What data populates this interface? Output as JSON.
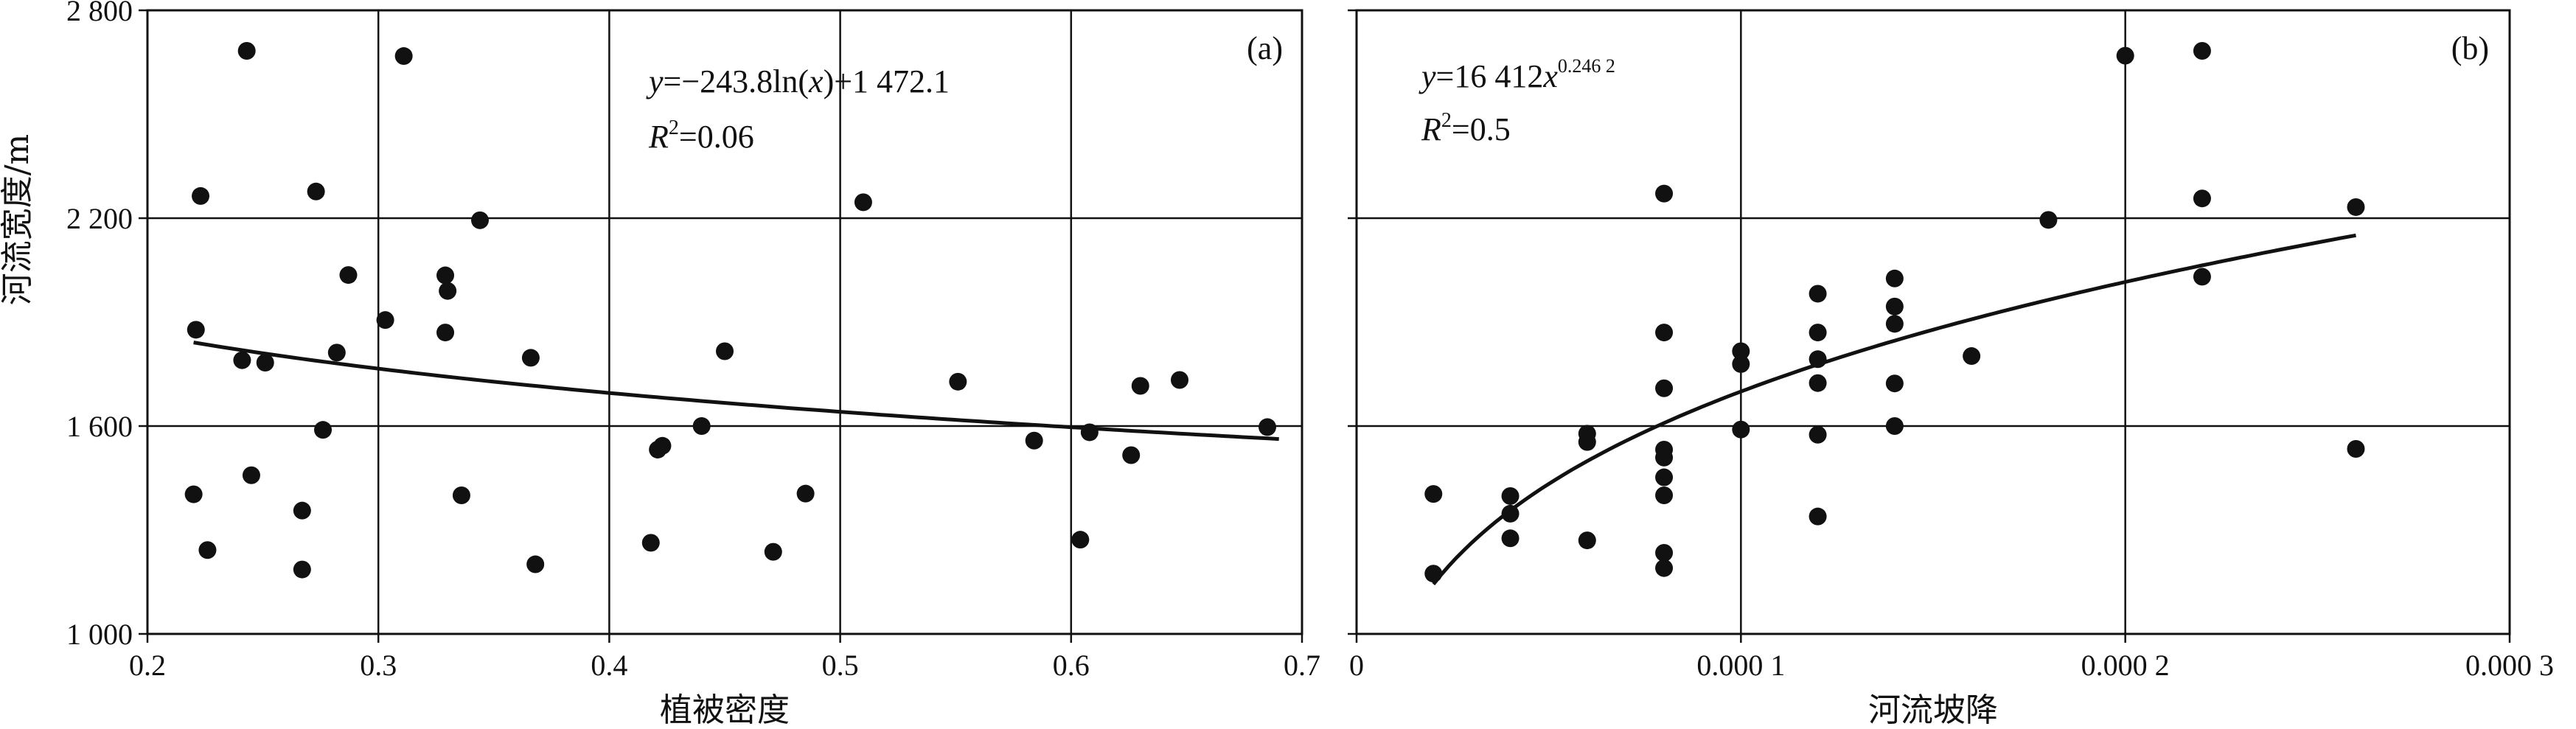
{
  "chart_data": [
    {
      "type": "scatter",
      "panel": "(a)",
      "xlabel": "植被密度",
      "ylabel": "河流宽度/m",
      "xlim": [
        0.2,
        0.7
      ],
      "ylim": [
        1000,
        2800
      ],
      "xticks": [
        0.2,
        0.3,
        0.4,
        0.5,
        0.6,
        0.7
      ],
      "xtick_labels": [
        "0.2",
        "0.3",
        "0.4",
        "0.5",
        "0.6",
        "0.7"
      ],
      "yticks": [
        1000,
        1600,
        2200,
        2800
      ],
      "ytick_labels": [
        "1 000",
        "1 600",
        "2 200",
        "2 800"
      ],
      "grid": true,
      "equation": {
        "lhs": "y",
        "text1": "=−243.8ln(",
        "var": "x",
        "text2": ")+1 472.1"
      },
      "r2": {
        "symbol": "R",
        "sup": "2",
        "value": "=0.06"
      },
      "fit": {
        "model": "log",
        "a": -243.8,
        "b": 1472.1,
        "x_from": 0.22,
        "x_to": 0.69
      },
      "points": [
        {
          "x": 0.221,
          "y": 1878
        },
        {
          "x": 0.223,
          "y": 2264
        },
        {
          "x": 0.243,
          "y": 2683
        },
        {
          "x": 0.241,
          "y": 1790
        },
        {
          "x": 0.251,
          "y": 1783
        },
        {
          "x": 0.22,
          "y": 1403
        },
        {
          "x": 0.226,
          "y": 1242
        },
        {
          "x": 0.245,
          "y": 1458
        },
        {
          "x": 0.267,
          "y": 1356
        },
        {
          "x": 0.267,
          "y": 1186
        },
        {
          "x": 0.273,
          "y": 2277
        },
        {
          "x": 0.276,
          "y": 1589
        },
        {
          "x": 0.282,
          "y": 1812
        },
        {
          "x": 0.287,
          "y": 2036
        },
        {
          "x": 0.303,
          "y": 1906
        },
        {
          "x": 0.311,
          "y": 2668
        },
        {
          "x": 0.329,
          "y": 2035
        },
        {
          "x": 0.33,
          "y": 1990
        },
        {
          "x": 0.329,
          "y": 1870
        },
        {
          "x": 0.336,
          "y": 1400
        },
        {
          "x": 0.344,
          "y": 2194
        },
        {
          "x": 0.366,
          "y": 1797
        },
        {
          "x": 0.368,
          "y": 1201
        },
        {
          "x": 0.418,
          "y": 1263
        },
        {
          "x": 0.421,
          "y": 1532
        },
        {
          "x": 0.423,
          "y": 1543
        },
        {
          "x": 0.44,
          "y": 1600
        },
        {
          "x": 0.45,
          "y": 1816
        },
        {
          "x": 0.471,
          "y": 1237
        },
        {
          "x": 0.485,
          "y": 1405
        },
        {
          "x": 0.51,
          "y": 2246
        },
        {
          "x": 0.551,
          "y": 1728
        },
        {
          "x": 0.584,
          "y": 1558
        },
        {
          "x": 0.604,
          "y": 1272
        },
        {
          "x": 0.608,
          "y": 1582
        },
        {
          "x": 0.626,
          "y": 1516
        },
        {
          "x": 0.63,
          "y": 1716
        },
        {
          "x": 0.647,
          "y": 1733
        },
        {
          "x": 0.685,
          "y": 1597
        }
      ]
    },
    {
      "type": "scatter",
      "panel": "(b)",
      "xlabel": "河流坡降",
      "ylabel": "",
      "xlim": [
        0,
        0.0003
      ],
      "ylim": [
        1000,
        2800
      ],
      "xticks": [
        0,
        0.0001,
        0.0002,
        0.0003
      ],
      "xtick_labels": [
        "0",
        "0.000 1",
        "0.000 2",
        "0.000 3"
      ],
      "yticks": [
        1000,
        1600,
        2200,
        2800
      ],
      "ytick_labels": [],
      "grid": true,
      "equation": {
        "lhs": "y",
        "text1": "=16 412",
        "var": "x",
        "exp": "0.246 2"
      },
      "r2": {
        "symbol": "R",
        "sup": "2",
        "value": "=0.5"
      },
      "fit": {
        "model": "power",
        "a": 16412,
        "b": 0.2462,
        "x_from": 2e-05,
        "x_to": 0.00026
      },
      "points": [
        {
          "x": 2e-05,
          "y": 1404
        },
        {
          "x": 2e-05,
          "y": 1174
        },
        {
          "x": 4e-05,
          "y": 1398
        },
        {
          "x": 4e-05,
          "y": 1347
        },
        {
          "x": 4e-05,
          "y": 1276
        },
        {
          "x": 6e-05,
          "y": 1578
        },
        {
          "x": 6e-05,
          "y": 1554
        },
        {
          "x": 6e-05,
          "y": 1270
        },
        {
          "x": 8e-05,
          "y": 2271
        },
        {
          "x": 8e-05,
          "y": 1870
        },
        {
          "x": 8e-05,
          "y": 1709
        },
        {
          "x": 8e-05,
          "y": 1532
        },
        {
          "x": 8e-05,
          "y": 1509
        },
        {
          "x": 8e-05,
          "y": 1452
        },
        {
          "x": 8e-05,
          "y": 1400
        },
        {
          "x": 8e-05,
          "y": 1234
        },
        {
          "x": 8e-05,
          "y": 1190
        },
        {
          "x": 0.0001,
          "y": 1816
        },
        {
          "x": 0.0001,
          "y": 1779
        },
        {
          "x": 0.0001,
          "y": 1590
        },
        {
          "x": 0.00012,
          "y": 1982
        },
        {
          "x": 0.00012,
          "y": 1870
        },
        {
          "x": 0.00012,
          "y": 1793
        },
        {
          "x": 0.00012,
          "y": 1724
        },
        {
          "x": 0.00012,
          "y": 1575
        },
        {
          "x": 0.00012,
          "y": 1339
        },
        {
          "x": 0.00014,
          "y": 2026
        },
        {
          "x": 0.00014,
          "y": 1945
        },
        {
          "x": 0.00014,
          "y": 1895
        },
        {
          "x": 0.00014,
          "y": 1723
        },
        {
          "x": 0.00014,
          "y": 1600
        },
        {
          "x": 0.00016,
          "y": 1802
        },
        {
          "x": 0.00018,
          "y": 2195
        },
        {
          "x": 0.0002,
          "y": 2669
        },
        {
          "x": 0.00022,
          "y": 2683
        },
        {
          "x": 0.00022,
          "y": 2257
        },
        {
          "x": 0.00022,
          "y": 2031
        },
        {
          "x": 0.00026,
          "y": 2232
        },
        {
          "x": 0.00026,
          "y": 1534
        }
      ]
    }
  ]
}
